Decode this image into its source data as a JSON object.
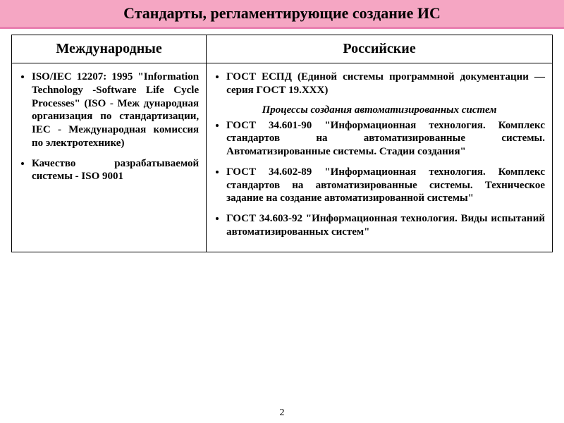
{
  "title": "Стандарты, регламентирующие создание ИС",
  "page_number": "2",
  "colors": {
    "title_bg": "#f5a6c3",
    "title_underline": "#e97fb0",
    "border": "#000000",
    "background": "#ffffff",
    "text": "#000000"
  },
  "columns": {
    "left_header": "Международные",
    "right_header": "Российские",
    "left_width_pct": 36,
    "right_width_pct": 64
  },
  "left_items": [
    "ISO/IEC 12207: 1995 \"Information Technology -Software Life Cycle Processes\" (ISO - Меж дународная организация по стандартизации, IEC - Международная комиссия по электротехнике)",
    "Качество разрабатываемой системы - ISO 9001"
  ],
  "right_top_item": "ГОСТ ЕСПД (Единой системы программной документации — серия ГОСТ 19.ХХХ)",
  "right_subhead": "Процессы создания автоматизированных систем",
  "right_items": [
    "ГОСТ 34.601-90 \"Информационная технология. Комплекс стандартов на автоматизированные системы. Автоматизированные системы. Стадии создания\"",
    "ГОСТ 34.602-89 \"Информационная технология. Комплекс стандартов на автоматизированные системы. Техническое задание на создание автоматизированной системы\"",
    "ГОСТ 34.603-92 \"Информационная технология. Виды испытаний автоматизированных систем\""
  ],
  "typography": {
    "title_fontsize": 22,
    "header_fontsize": 20,
    "body_fontsize": 15,
    "font_family": "Times New Roman",
    "body_weight": "bold",
    "body_align": "justify"
  }
}
